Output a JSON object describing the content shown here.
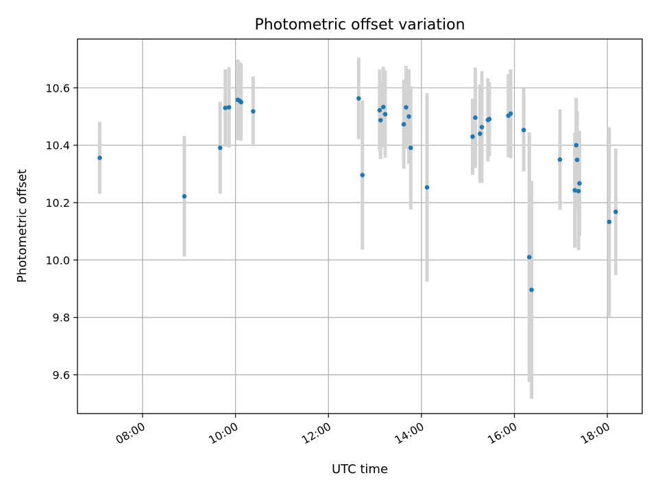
{
  "chart_data": {
    "type": "scatter",
    "title": "Photometric offset variation",
    "xlabel": "UTC time",
    "ylabel": "Photometric offset",
    "x_unit": "hours",
    "xlim": [
      6.6,
      18.75
    ],
    "ylim": [
      9.465,
      10.77
    ],
    "x_ticks": [
      {
        "value": 8,
        "label": "08:00"
      },
      {
        "value": 10,
        "label": "10:00"
      },
      {
        "value": 12,
        "label": "12:00"
      },
      {
        "value": 14,
        "label": "14:00"
      },
      {
        "value": 16,
        "label": "16:00"
      },
      {
        "value": 18,
        "label": "18:00"
      }
    ],
    "y_ticks": [
      {
        "value": 9.6,
        "label": "9.6"
      },
      {
        "value": 9.8,
        "label": "9.8"
      },
      {
        "value": 10.0,
        "label": "10.0"
      },
      {
        "value": 10.2,
        "label": "10.2"
      },
      {
        "value": 10.4,
        "label": "10.4"
      },
      {
        "value": 10.6,
        "label": "10.6"
      }
    ],
    "grid": true,
    "colors": {
      "point": "#1f77b4",
      "errorbar": "#d3d3d3"
    },
    "points": [
      {
        "x": 7.08,
        "y": 10.356,
        "err": 0.125
      },
      {
        "x": 8.9,
        "y": 10.222,
        "err": 0.21
      },
      {
        "x": 9.67,
        "y": 10.391,
        "err": 0.16
      },
      {
        "x": 9.78,
        "y": 10.53,
        "err": 0.135
      },
      {
        "x": 9.86,
        "y": 10.532,
        "err": 0.14
      },
      {
        "x": 10.05,
        "y": 10.558,
        "err": 0.14
      },
      {
        "x": 10.09,
        "y": 10.555,
        "err": 0.135
      },
      {
        "x": 10.12,
        "y": 10.55,
        "err": 0.135
      },
      {
        "x": 10.38,
        "y": 10.518,
        "err": 0.122
      },
      {
        "x": 12.65,
        "y": 10.563,
        "err": 0.142
      },
      {
        "x": 12.73,
        "y": 10.296,
        "err": 0.26
      },
      {
        "x": 13.1,
        "y": 10.522,
        "err": 0.142
      },
      {
        "x": 13.12,
        "y": 10.487,
        "err": 0.135
      },
      {
        "x": 13.18,
        "y": 10.533,
        "err": 0.14
      },
      {
        "x": 13.22,
        "y": 10.508,
        "err": 0.152
      },
      {
        "x": 13.62,
        "y": 10.473,
        "err": 0.155
      },
      {
        "x": 13.67,
        "y": 10.532,
        "err": 0.145
      },
      {
        "x": 13.73,
        "y": 10.5,
        "err": 0.165
      },
      {
        "x": 13.77,
        "y": 10.391,
        "err": 0.215
      },
      {
        "x": 14.12,
        "y": 10.253,
        "err": 0.328
      },
      {
        "x": 15.1,
        "y": 10.43,
        "err": 0.133
      },
      {
        "x": 15.16,
        "y": 10.496,
        "err": 0.175
      },
      {
        "x": 15.26,
        "y": 10.44,
        "err": 0.172
      },
      {
        "x": 15.3,
        "y": 10.463,
        "err": 0.195
      },
      {
        "x": 15.43,
        "y": 10.488,
        "err": 0.145
      },
      {
        "x": 15.46,
        "y": 10.491,
        "err": 0.13
      },
      {
        "x": 15.87,
        "y": 10.503,
        "err": 0.145
      },
      {
        "x": 15.92,
        "y": 10.51,
        "err": 0.155
      },
      {
        "x": 16.2,
        "y": 10.453,
        "err": 0.145
      },
      {
        "x": 16.32,
        "y": 10.01,
        "err": 0.435
      },
      {
        "x": 16.37,
        "y": 9.896,
        "err": 0.38
      },
      {
        "x": 16.98,
        "y": 10.35,
        "err": 0.175
      },
      {
        "x": 17.3,
        "y": 10.243,
        "err": 0.2
      },
      {
        "x": 17.33,
        "y": 10.4,
        "err": 0.165
      },
      {
        "x": 17.35,
        "y": 10.349,
        "err": 0.17
      },
      {
        "x": 17.38,
        "y": 10.24,
        "err": 0.205
      },
      {
        "x": 17.4,
        "y": 10.267,
        "err": 0.183
      },
      {
        "x": 18.04,
        "y": 10.133,
        "err": 0.33
      },
      {
        "x": 18.18,
        "y": 10.168,
        "err": 0.22
      }
    ]
  }
}
